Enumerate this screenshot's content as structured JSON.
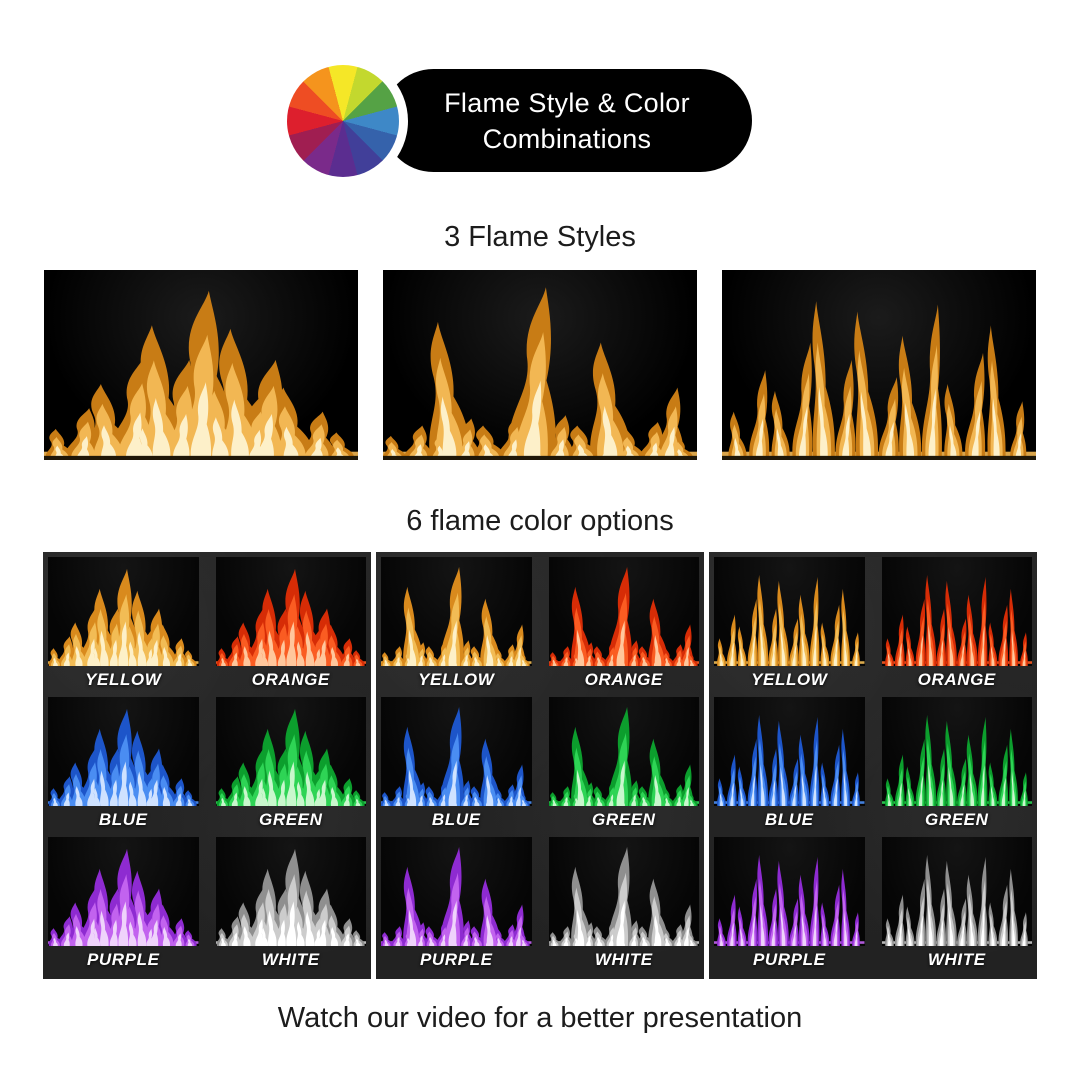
{
  "header": {
    "badge": {
      "line1": "Flame Style & Color",
      "line2": "Combinations",
      "background": "#000000",
      "text_color": "#ffffff"
    },
    "color_wheel_segments": [
      "#f5e727",
      "#c3d82e",
      "#55a245",
      "#3e88c7",
      "#3562ab",
      "#413f99",
      "#5b2d90",
      "#7a2a8a",
      "#a01e51",
      "#dd1f2d",
      "#ee4d23",
      "#f5941d"
    ]
  },
  "flame_styles": {
    "heading": "3 Flame Styles",
    "count": 3,
    "flame_palette": {
      "edge": "#c87c15",
      "body": "#f2b753",
      "core": "#fdf0c9"
    }
  },
  "color_options": {
    "heading": "6 flame color options",
    "panel_count": 3,
    "colors": [
      {
        "label": "YELLOW",
        "palette": {
          "edge": "#d98a1d",
          "body": "#f2bc55",
          "core": "#fdf0c8"
        }
      },
      {
        "label": "ORANGE",
        "palette": {
          "edge": "#d62c06",
          "body": "#fa5c22",
          "core": "#ffc79c"
        }
      },
      {
        "label": "BLUE",
        "palette": {
          "edge": "#1d55c9",
          "body": "#4a8df2",
          "core": "#cfe2ff"
        }
      },
      {
        "label": "GREEN",
        "palette": {
          "edge": "#0c9e2d",
          "body": "#2ed455",
          "core": "#c9f7cd"
        }
      },
      {
        "label": "PURPLE",
        "palette": {
          "edge": "#8e2bd1",
          "body": "#c263ef",
          "core": "#efd3fb"
        }
      },
      {
        "label": "WHITE",
        "palette": {
          "edge": "#8f8f8f",
          "body": "#cccccc",
          "core": "#ffffff"
        }
      }
    ]
  },
  "footer": {
    "text": "Watch our video for a better presentation"
  }
}
